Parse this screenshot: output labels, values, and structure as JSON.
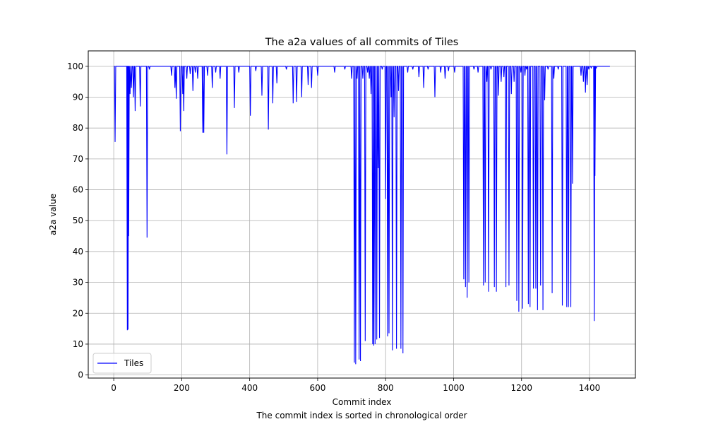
{
  "chart_data": {
    "type": "line",
    "title": "The a2a values of all commits of Tiles",
    "xlabel": "Commit index",
    "ylabel": "a2a value",
    "note": "The commit index is sorted in chronological order",
    "xlim": [
      -75,
      1535
    ],
    "ylim": [
      -1,
      105
    ],
    "x_ticks": [
      0,
      200,
      400,
      600,
      800,
      1000,
      1200,
      1400
    ],
    "y_ticks": [
      0,
      10,
      20,
      30,
      40,
      50,
      60,
      70,
      80,
      90,
      100
    ],
    "grid": true,
    "legend_position": "lower-left",
    "baseline": 100,
    "x_max": 1460,
    "series": [
      {
        "name": "Tiles",
        "color": "#0000ff",
        "dips": [
          [
            4,
            75.5
          ],
          [
            40,
            14.5
          ],
          [
            42,
            14.7
          ],
          [
            44,
            45
          ],
          [
            48,
            91
          ],
          [
            52,
            93
          ],
          [
            58,
            90
          ],
          [
            63,
            85.5
          ],
          [
            78,
            87
          ],
          [
            98,
            44.5
          ],
          [
            105,
            99
          ],
          [
            170,
            97
          ],
          [
            180,
            93
          ],
          [
            184,
            89.5
          ],
          [
            196,
            79
          ],
          [
            203,
            91
          ],
          [
            206,
            85.5
          ],
          [
            215,
            96
          ],
          [
            225,
            97.5
          ],
          [
            233,
            92
          ],
          [
            240,
            98
          ],
          [
            247,
            96
          ],
          [
            262,
            78.5
          ],
          [
            265,
            78.5
          ],
          [
            276,
            97
          ],
          [
            290,
            93
          ],
          [
            300,
            98
          ],
          [
            313,
            96
          ],
          [
            333,
            71.5
          ],
          [
            355,
            86.5
          ],
          [
            368,
            98
          ],
          [
            402,
            84
          ],
          [
            418,
            98.5
          ],
          [
            436,
            90.5
          ],
          [
            455,
            79.5
          ],
          [
            468,
            88
          ],
          [
            480,
            94.5
          ],
          [
            508,
            99
          ],
          [
            528,
            88
          ],
          [
            538,
            88.5
          ],
          [
            553,
            90
          ],
          [
            572,
            94
          ],
          [
            582,
            93
          ],
          [
            600,
            97
          ],
          [
            650,
            98
          ],
          [
            680,
            99
          ],
          [
            700,
            96
          ],
          [
            708,
            4
          ],
          [
            712,
            3.5
          ],
          [
            716,
            96
          ],
          [
            722,
            5
          ],
          [
            726,
            4.5
          ],
          [
            733,
            96
          ],
          [
            740,
            11
          ],
          [
            747,
            98
          ],
          [
            752,
            96
          ],
          [
            757,
            91
          ],
          [
            762,
            10
          ],
          [
            765,
            9.5
          ],
          [
            769,
            10
          ],
          [
            774,
            11.5
          ],
          [
            778,
            67
          ],
          [
            782,
            12
          ],
          [
            790,
            99
          ],
          [
            800,
            57
          ],
          [
            806,
            12.5
          ],
          [
            810,
            13.5
          ],
          [
            816,
            90
          ],
          [
            820,
            8
          ],
          [
            825,
            83.5
          ],
          [
            832,
            8.5
          ],
          [
            838,
            92
          ],
          [
            845,
            8.5
          ],
          [
            851,
            7
          ],
          [
            865,
            98
          ],
          [
            880,
            99
          ],
          [
            898,
            96.5
          ],
          [
            912,
            93
          ],
          [
            925,
            99
          ],
          [
            945,
            90
          ],
          [
            962,
            98
          ],
          [
            975,
            96
          ],
          [
            985,
            98.5
          ],
          [
            1003,
            98
          ],
          [
            1030,
            31
          ],
          [
            1035,
            28.5
          ],
          [
            1040,
            25
          ],
          [
            1045,
            30
          ],
          [
            1060,
            99
          ],
          [
            1072,
            98
          ],
          [
            1088,
            29
          ],
          [
            1093,
            30
          ],
          [
            1098,
            95
          ],
          [
            1103,
            27
          ],
          [
            1110,
            99
          ],
          [
            1120,
            28.5
          ],
          [
            1126,
            27
          ],
          [
            1132,
            90.5
          ],
          [
            1140,
            95
          ],
          [
            1148,
            96.5
          ],
          [
            1154,
            28.5
          ],
          [
            1163,
            29
          ],
          [
            1170,
            91
          ],
          [
            1178,
            95
          ],
          [
            1186,
            24
          ],
          [
            1192,
            20.5
          ],
          [
            1198,
            98
          ],
          [
            1203,
            21.5
          ],
          [
            1210,
            97
          ],
          [
            1215,
            99
          ],
          [
            1220,
            23
          ],
          [
            1225,
            22
          ],
          [
            1235,
            28
          ],
          [
            1242,
            28
          ],
          [
            1247,
            21
          ],
          [
            1256,
            29
          ],
          [
            1263,
            21
          ],
          [
            1268,
            89
          ],
          [
            1278,
            99
          ],
          [
            1290,
            26.5
          ],
          [
            1295,
            96
          ],
          [
            1308,
            99
          ],
          [
            1320,
            22.5
          ],
          [
            1333,
            22
          ],
          [
            1338,
            22
          ],
          [
            1345,
            22
          ],
          [
            1350,
            62
          ],
          [
            1375,
            97
          ],
          [
            1382,
            95
          ],
          [
            1388,
            91.5
          ],
          [
            1393,
            94
          ],
          [
            1398,
            99
          ],
          [
            1405,
            99.5
          ],
          [
            1414,
            17.5
          ],
          [
            1416,
            64.5
          ],
          [
            1420,
            99.5
          ]
        ]
      }
    ]
  }
}
